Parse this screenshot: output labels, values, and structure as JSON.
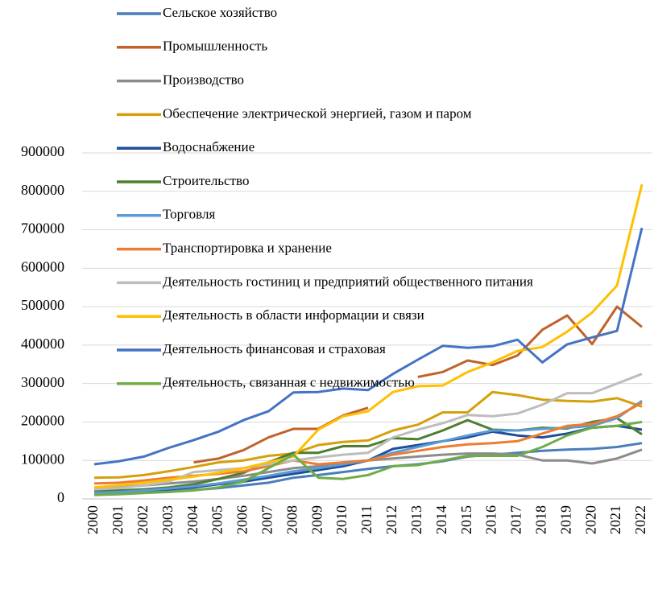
{
  "chart_data": {
    "type": "line",
    "x": [
      "2000",
      "2001",
      "2002",
      "2003",
      "2004",
      "2005",
      "2006",
      "2007",
      "2008",
      "2009",
      "2010",
      "2011",
      "2012",
      "2013",
      "2014",
      "2015",
      "2016",
      "2017",
      "2018",
      "2019",
      "2020",
      "2021",
      "2022"
    ],
    "ylim": [
      0,
      900000
    ],
    "yticks": [
      0,
      100000,
      200000,
      300000,
      400000,
      500000,
      600000,
      700000,
      800000,
      900000
    ],
    "grid": true,
    "series": [
      {
        "name": "Сельское хозяйство",
        "color": "#4a7ebb",
        "values": [
          12000,
          14000,
          16000,
          19000,
          23000,
          28000,
          35000,
          42000,
          55000,
          62000,
          70000,
          78000,
          85000,
          90000,
          98000,
          110000,
          115000,
          120000,
          125000,
          128000,
          130000,
          135000,
          145000
        ]
      },
      {
        "name": "Промышленность",
        "color": "#c0622a",
        "values": [
          null,
          null,
          null,
          null,
          95000,
          105000,
          127000,
          160000,
          182000,
          182000,
          217000,
          237000,
          null,
          317000,
          330000,
          360000,
          348000,
          373000,
          440000,
          477000,
          403000,
          500000,
          447000
        ]
      },
      {
        "name": "Производство",
        "color": "#8c8c8c",
        "values": [
          28000,
          30000,
          35000,
          40000,
          45000,
          52000,
          60000,
          70000,
          80000,
          85000,
          95000,
          100000,
          105000,
          110000,
          115000,
          118000,
          118000,
          115000,
          100000,
          100000,
          92000,
          105000,
          128000
        ]
      },
      {
        "name": "Обеспечение электрической энергией, газом и паром",
        "color": "#d4a00b",
        "values": [
          55000,
          56000,
          62000,
          72000,
          83000,
          95000,
          100000,
          112000,
          118000,
          140000,
          148000,
          152000,
          178000,
          193000,
          225000,
          225000,
          278000,
          270000,
          258000,
          255000,
          253000,
          262000,
          240000
        ]
      },
      {
        "name": " Водоснабжение",
        "color": "#1f4e9a",
        "values": [
          18000,
          20000,
          22000,
          25000,
          30000,
          38000,
          45000,
          55000,
          65000,
          75000,
          85000,
          100000,
          130000,
          140000,
          150000,
          160000,
          175000,
          165000,
          160000,
          170000,
          185000,
          190000,
          180000
        ]
      },
      {
        "name": "Строительство",
        "color": "#4e7e2e",
        "values": [
          20000,
          22000,
          25000,
          30000,
          38000,
          52000,
          68000,
          95000,
          120000,
          120000,
          137000,
          137000,
          158000,
          155000,
          178000,
          205000,
          180000,
          178000,
          185000,
          183000,
          200000,
          210000,
          168000
        ]
      },
      {
        "name": "Торговля",
        "color": "#5b9bd5",
        "values": [
          16000,
          18000,
          22000,
          27000,
          33000,
          40000,
          50000,
          60000,
          72000,
          80000,
          90000,
          100000,
          120000,
          135000,
          150000,
          165000,
          178000,
          178000,
          182000,
          185000,
          190000,
          210000,
          255000
        ]
      },
      {
        "name": "Транспортировка и хранение",
        "color": "#ed7d31",
        "values": [
          40000,
          42000,
          48000,
          55000,
          60000,
          65000,
          72000,
          85000,
          100000,
          90000,
          95000,
          100000,
          115000,
          125000,
          135000,
          142000,
          145000,
          150000,
          170000,
          190000,
          195000,
          215000,
          250000
        ]
      },
      {
        "name": "Деятельность гостиниц и предприятий общественного питания",
        "color": "#bdbdbd",
        "values": [
          25000,
          28000,
          35000,
          45000,
          70000,
          75000,
          80000,
          90000,
          100000,
          108000,
          115000,
          120000,
          160000,
          180000,
          197000,
          218000,
          215000,
          222000,
          245000,
          275000,
          275000,
          300000,
          325000
        ]
      },
      {
        "name": "Деятельность в области информации и связи",
        "color": "#ffc000",
        "values": [
          30000,
          35000,
          42000,
          50000,
          58000,
          68000,
          80000,
          95000,
          110000,
          180000,
          215000,
          228000,
          278000,
          293000,
          295000,
          330000,
          355000,
          385000,
          395000,
          435000,
          485000,
          555000,
          818000
        ]
      },
      {
        "name": "Деятельность финансовая и страховая",
        "color": "#4472c4",
        "values": [
          90000,
          98000,
          110000,
          133000,
          153000,
          175000,
          205000,
          228000,
          277000,
          278000,
          287000,
          283000,
          325000,
          362000,
          398000,
          393000,
          397000,
          414000,
          355000,
          402000,
          420000,
          437000,
          705000
        ]
      },
      {
        "name": " Деятельность, связанная с недвижимостью",
        "color": "#70ad47",
        "values": [
          10000,
          12000,
          15000,
          18000,
          22000,
          30000,
          45000,
          80000,
          115000,
          55000,
          52000,
          62000,
          85000,
          88000,
          100000,
          112000,
          112000,
          112000,
          135000,
          165000,
          185000,
          190000,
          200000
        ]
      }
    ]
  }
}
